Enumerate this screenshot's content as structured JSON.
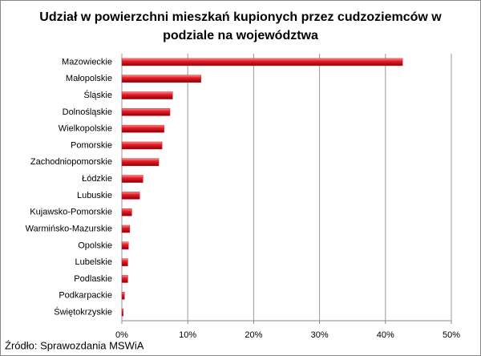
{
  "chart_data": {
    "type": "hbar",
    "title": "Udział w powierzchni mieszkań kupionych przez cudzoziemców w podziale na województwa",
    "categories": [
      "Mazowieckie",
      "Małopolskie",
      "Śląskie",
      "Dolnośląskie",
      "Wielkopolskie",
      "Pomorskie",
      "Zachodniopomorskie",
      "Łódzkie",
      "Lubuskie",
      "Kujawsko-Pomorskie",
      "Warmińsko-Mazurskie",
      "Opolskie",
      "Lubelskie",
      "Podlaskie",
      "Podkarpackie",
      "Świętokrzyskie"
    ],
    "values": [
      42.6,
      12.0,
      7.7,
      7.3,
      6.4,
      6.1,
      5.6,
      3.2,
      2.7,
      1.5,
      1.2,
      1.0,
      0.9,
      0.9,
      0.4,
      0.2
    ],
    "color": "#e0141e",
    "xlim": [
      0,
      50
    ],
    "xticks": [
      {
        "value": 0,
        "label": "0%"
      },
      {
        "value": 10,
        "label": "10%"
      },
      {
        "value": 20,
        "label": "20%"
      },
      {
        "value": 30,
        "label": "30%"
      },
      {
        "value": 40,
        "label": "40%"
      },
      {
        "value": 50,
        "label": "50%"
      }
    ],
    "grid": true,
    "source": "Źródło: Sprawozdania MSWiA"
  }
}
